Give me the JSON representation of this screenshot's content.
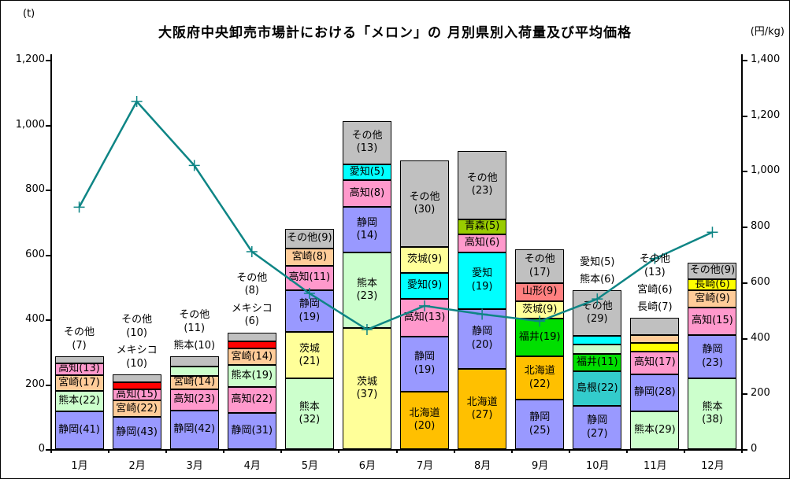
{
  "title": "大阪府中央卸売市場計における「メロン」の 月別県別入荷量及び平均価格",
  "left_axis": {
    "unit": "(t)",
    "max": 1200,
    "step": 200,
    "tick_labels": [
      "0",
      "200",
      "400",
      "600",
      "800",
      "1,000",
      "1,200"
    ]
  },
  "right_axis": {
    "unit": "(円/kg)",
    "max": 1400,
    "step": 200,
    "tick_labels": [
      "0",
      "200",
      "400",
      "600",
      "800",
      "1,000",
      "1,200",
      "1,400"
    ]
  },
  "colors": {
    "静岡": "#9999FF",
    "熊本": "#CCFFCC",
    "宮崎": "#FFCC99",
    "高知": "#FF99CC",
    "その他": "#C0C0C0",
    "メキシコ": "#FF0000",
    "茨城": "#FFFF99",
    "愛知": "#00FFFF",
    "北海道": "#FFC000",
    "青森": "#99CC00",
    "福井": "#00DF00",
    "山形": "#FF8080",
    "島根": "#33CCCC",
    "長崎": "#FFFF00"
  },
  "line_color": "#0E8585",
  "chart_data": {
    "type": "stacked-bar+line",
    "categories": [
      "1月",
      "2月",
      "3月",
      "4月",
      "5月",
      "6月",
      "7月",
      "8月",
      "9月",
      "10月",
      "11月",
      "12月"
    ],
    "bar_axis": {
      "label": "入荷量",
      "unit": "t",
      "range": [
        0,
        1200
      ],
      "grid": false
    },
    "line_axis": {
      "label": "平均価格",
      "unit": "円/kg",
      "range": [
        0,
        1400
      ]
    },
    "legend": "none (labels drawn on segments)",
    "bar_totals_t": [
      285,
      230,
      285,
      360,
      680,
      1010,
      890,
      920,
      615,
      490,
      405,
      575
    ],
    "bars": [
      {
        "month": "1月",
        "total_t": 285,
        "segments": [
          {
            "name": "静岡",
            "pct": 41
          },
          {
            "name": "熊本",
            "pct": 22
          },
          {
            "name": "宮崎",
            "pct": 17
          },
          {
            "name": "高知",
            "pct": 13
          },
          {
            "name": "その他",
            "pct": 7,
            "label_outside": true
          }
        ]
      },
      {
        "month": "2月",
        "total_t": 230,
        "segments": [
          {
            "name": "静岡",
            "pct": 43
          },
          {
            "name": "宮崎",
            "pct": 22
          },
          {
            "name": "高知",
            "pct": 15
          },
          {
            "name": "メキシコ",
            "pct": 10,
            "label_outside": true
          },
          {
            "name": "その他",
            "pct": 10,
            "label_outside": true
          }
        ]
      },
      {
        "month": "3月",
        "total_t": 285,
        "segments": [
          {
            "name": "静岡",
            "pct": 42
          },
          {
            "name": "高知",
            "pct": 23
          },
          {
            "name": "宮崎",
            "pct": 14
          },
          {
            "name": "熊本",
            "pct": 10,
            "label_outside": true
          },
          {
            "name": "その他",
            "pct": 11,
            "label_outside": true
          }
        ]
      },
      {
        "month": "4月",
        "total_t": 360,
        "segments": [
          {
            "name": "静岡",
            "pct": 31
          },
          {
            "name": "高知",
            "pct": 22
          },
          {
            "name": "熊本",
            "pct": 19
          },
          {
            "name": "宮崎",
            "pct": 14
          },
          {
            "name": "メキシコ",
            "pct": 6,
            "label_outside": true
          },
          {
            "name": "その他",
            "pct": 8,
            "label_outside": true
          }
        ]
      },
      {
        "month": "5月",
        "total_t": 680,
        "segments": [
          {
            "name": "熊本",
            "pct": 32
          },
          {
            "name": "茨城",
            "pct": 21
          },
          {
            "name": "静岡",
            "pct": 19
          },
          {
            "name": "高知",
            "pct": 11
          },
          {
            "name": "宮崎",
            "pct": 8
          },
          {
            "name": "その他",
            "pct": 9
          }
        ]
      },
      {
        "month": "6月",
        "total_t": 1010,
        "segments": [
          {
            "name": "茨城",
            "pct": 37
          },
          {
            "name": "熊本",
            "pct": 23
          },
          {
            "name": "静岡",
            "pct": 14
          },
          {
            "name": "高知",
            "pct": 8
          },
          {
            "name": "愛知",
            "pct": 5
          },
          {
            "name": "その他",
            "pct": 13
          }
        ]
      },
      {
        "month": "7月",
        "total_t": 890,
        "segments": [
          {
            "name": "北海道",
            "pct": 20
          },
          {
            "name": "静岡",
            "pct": 19
          },
          {
            "name": "高知",
            "pct": 13
          },
          {
            "name": "愛知",
            "pct": 9
          },
          {
            "name": "茨城",
            "pct": 9
          },
          {
            "name": "その他",
            "pct": 30
          }
        ]
      },
      {
        "month": "8月",
        "total_t": 920,
        "segments": [
          {
            "name": "北海道",
            "pct": 27
          },
          {
            "name": "静岡",
            "pct": 20
          },
          {
            "name": "愛知",
            "pct": 19
          },
          {
            "name": "高知",
            "pct": 6
          },
          {
            "name": "青森",
            "pct": 5
          },
          {
            "name": "その他",
            "pct": 23
          }
        ]
      },
      {
        "month": "9月",
        "total_t": 615,
        "segments": [
          {
            "name": "静岡",
            "pct": 25
          },
          {
            "name": "北海道",
            "pct": 22
          },
          {
            "name": "福井",
            "pct": 19
          },
          {
            "name": "茨城",
            "pct": 9
          },
          {
            "name": "山形",
            "pct": 9
          },
          {
            "name": "その他",
            "pct": 17
          }
        ]
      },
      {
        "month": "10月",
        "total_t": 490,
        "segments": [
          {
            "name": "静岡",
            "pct": 27
          },
          {
            "name": "島根",
            "pct": 22
          },
          {
            "name": "福井",
            "pct": 11
          },
          {
            "name": "熊本",
            "pct": 6,
            "label_outside": true
          },
          {
            "name": "愛知",
            "pct": 5,
            "label_outside": true
          },
          {
            "name": "その他",
            "pct": 29
          }
        ]
      },
      {
        "month": "11月",
        "total_t": 405,
        "segments": [
          {
            "name": "熊本",
            "pct": 29
          },
          {
            "name": "静岡",
            "pct": 28
          },
          {
            "name": "高知",
            "pct": 17
          },
          {
            "name": "長崎",
            "pct": 7,
            "label_outside": true
          },
          {
            "name": "宮崎",
            "pct": 6,
            "label_outside": true
          },
          {
            "name": "その他",
            "pct": 13,
            "label_outside": true
          }
        ]
      },
      {
        "month": "12月",
        "total_t": 575,
        "segments": [
          {
            "name": "熊本",
            "pct": 38
          },
          {
            "name": "静岡",
            "pct": 23
          },
          {
            "name": "高知",
            "pct": 15
          },
          {
            "name": "宮崎",
            "pct": 9
          },
          {
            "name": "長崎",
            "pct": 6
          },
          {
            "name": "その他",
            "pct": 9
          }
        ]
      }
    ],
    "line": {
      "name": "平均価格",
      "unit": "円/kg",
      "values": [
        870,
        1250,
        1020,
        710,
        560,
        430,
        515,
        485,
        460,
        540,
        685,
        780
      ]
    }
  }
}
